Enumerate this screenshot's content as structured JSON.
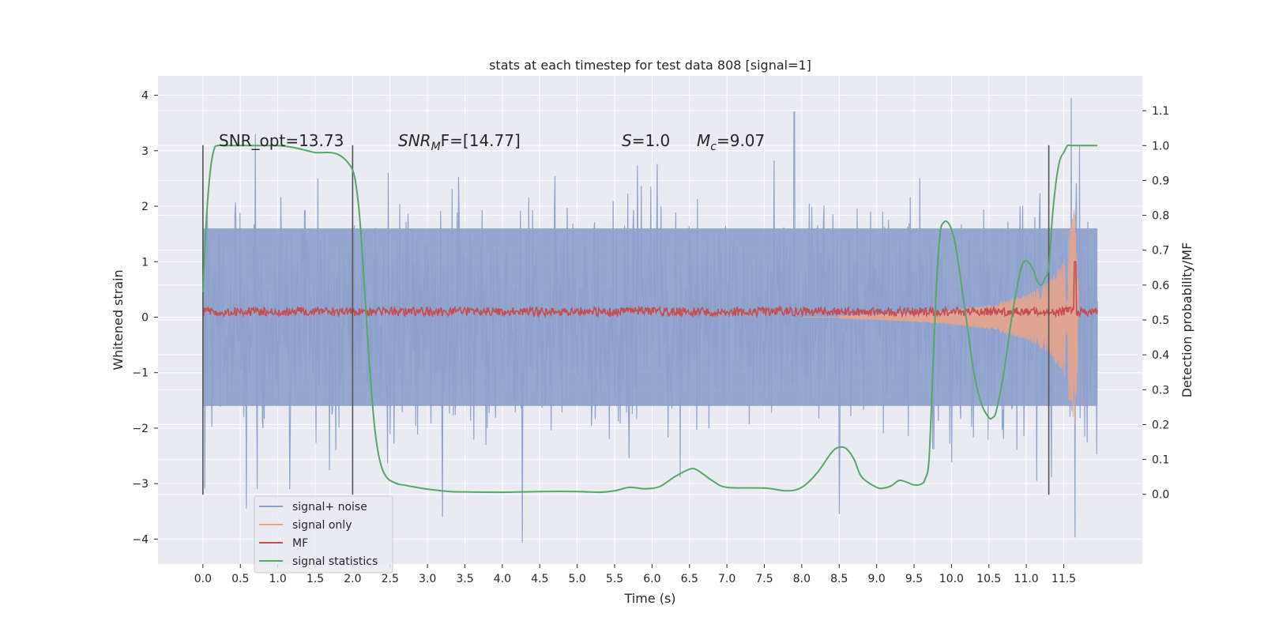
{
  "chart_data": {
    "type": "line",
    "title": "stats at each timestep for test data 808 [signal=1]",
    "xlabel": "Time (s)",
    "ylabel": "Whitened strain",
    "ylabel_right": "Detection probability/MF",
    "xlim": [
      -0.6,
      12.55
    ],
    "ylim": [
      -4.45,
      4.35
    ],
    "ylim_right": [
      -0.2,
      1.2
    ],
    "xticks": [
      "0.0",
      "0.5",
      "1.0",
      "1.5",
      "2.0",
      "2.5",
      "3.0",
      "3.5",
      "4.0",
      "4.5",
      "5.0",
      "5.5",
      "6.0",
      "6.5",
      "7.0",
      "7.5",
      "8.0",
      "8.5",
      "9.0",
      "9.5",
      "10.0",
      "10.5",
      "11.0",
      "11.5"
    ],
    "yticks": [
      "4",
      "3",
      "2",
      "1",
      "0",
      "−1",
      "−2",
      "−3",
      "−4"
    ],
    "yticks_right": [
      "1.1",
      "1.0",
      "0.9",
      "0.8",
      "0.7",
      "0.6",
      "0.5",
      "0.4",
      "0.3",
      "0.2",
      "0.1",
      "0.0"
    ],
    "grid": true,
    "legend_position": "bottom-left",
    "annotations": {
      "snr_opt": "SNR_opt=13.73",
      "snr_mf_base": "SNR",
      "snr_mf_sub": "M",
      "snr_mf_rest": "F=[14.77]",
      "s_base": "S",
      "s_rest": "=1.0",
      "mc_base": "M",
      "mc_sub": "c",
      "mc_rest": "=9.07"
    },
    "vertical_lines_x": [
      0.0,
      2.0,
      11.3
    ],
    "series": [
      {
        "name": "signal+ noise",
        "color": "#8da0cb",
        "axis": "left",
        "x_range": [
          0.0,
          11.95
        ],
        "noise_band": [
          -1.6,
          1.6
        ],
        "notable_peaks": [
          {
            "x": 0.7,
            "y": 3.3
          },
          {
            "x": 0.58,
            "y": -3.45
          },
          {
            "x": 3.2,
            "y": -3.6
          },
          {
            "x": 4.27,
            "y": -4.07
          },
          {
            "x": 7.9,
            "y": 3.7
          },
          {
            "x": 8.5,
            "y": -3.55
          },
          {
            "x": 11.6,
            "y": 3.95
          },
          {
            "x": 11.65,
            "y": -3.97
          }
        ]
      },
      {
        "name": "signal only",
        "color": "#e8a48c",
        "axis": "left",
        "envelope": [
          [
            8.5,
            0.02
          ],
          [
            9.0,
            0.05
          ],
          [
            9.5,
            0.08
          ],
          [
            10.0,
            0.13
          ],
          [
            10.5,
            0.22
          ],
          [
            11.0,
            0.4
          ],
          [
            11.3,
            0.65
          ],
          [
            11.5,
            1.0
          ],
          [
            11.6,
            1.7
          ],
          [
            11.65,
            2.0
          ],
          [
            11.7,
            0.3
          ]
        ]
      },
      {
        "name": "MF",
        "color": "#c44e52",
        "axis": "left",
        "x_range": [
          0.0,
          11.95
        ],
        "baseline": 0.1,
        "amplitude": 0.08,
        "spike": {
          "x": 11.65,
          "y": 1.0
        }
      },
      {
        "name": "signal statistics",
        "color": "#55a868",
        "axis": "right",
        "x": [
          0.0,
          0.05,
          0.1,
          0.15,
          0.2,
          0.3,
          0.4,
          0.6,
          0.8,
          1.0,
          1.2,
          1.4,
          1.5,
          1.6,
          1.7,
          1.8,
          1.9,
          2.0,
          2.05,
          2.1,
          2.15,
          2.2,
          2.25,
          2.3,
          2.35,
          2.4,
          2.45,
          2.5,
          2.6,
          2.7,
          2.8,
          3.0,
          3.3,
          3.5,
          4.0,
          4.5,
          5.0,
          5.3,
          5.5,
          5.7,
          5.9,
          6.1,
          6.3,
          6.5,
          6.6,
          6.8,
          7.0,
          7.5,
          7.8,
          8.0,
          8.2,
          8.4,
          8.5,
          8.6,
          8.7,
          8.8,
          9.0,
          9.1,
          9.2,
          9.3,
          9.4,
          9.5,
          9.6,
          9.65,
          9.7,
          9.75,
          9.8,
          9.85,
          9.9,
          9.95,
          10.0,
          10.05,
          10.1,
          10.2,
          10.3,
          10.4,
          10.5,
          10.55,
          10.6,
          10.7,
          10.8,
          10.9,
          10.95,
          11.0,
          11.05,
          11.1,
          11.15,
          11.2,
          11.25,
          11.3,
          11.35,
          11.4,
          11.45,
          11.5,
          11.55,
          11.6,
          11.8,
          11.95
        ],
        "y": [
          0.58,
          0.8,
          0.93,
          0.99,
          1.0,
          1.0,
          1.0,
          1.0,
          1.0,
          1.0,
          0.995,
          0.985,
          0.98,
          0.98,
          0.98,
          0.975,
          0.96,
          0.93,
          0.88,
          0.78,
          0.62,
          0.45,
          0.3,
          0.18,
          0.11,
          0.07,
          0.05,
          0.04,
          0.03,
          0.026,
          0.022,
          0.015,
          0.008,
          0.007,
          0.006,
          0.008,
          0.008,
          0.006,
          0.01,
          0.02,
          0.016,
          0.022,
          0.05,
          0.072,
          0.07,
          0.04,
          0.02,
          0.018,
          0.01,
          0.02,
          0.06,
          0.12,
          0.135,
          0.13,
          0.1,
          0.05,
          0.02,
          0.018,
          0.025,
          0.04,
          0.035,
          0.027,
          0.03,
          0.045,
          0.1,
          0.35,
          0.6,
          0.75,
          0.78,
          0.78,
          0.76,
          0.72,
          0.65,
          0.5,
          0.35,
          0.26,
          0.22,
          0.22,
          0.24,
          0.35,
          0.5,
          0.62,
          0.66,
          0.67,
          0.66,
          0.64,
          0.61,
          0.6,
          0.62,
          0.65,
          0.8,
          0.9,
          0.96,
          0.98,
          1.0,
          1.0,
          1.0,
          1.0
        ]
      }
    ]
  }
}
